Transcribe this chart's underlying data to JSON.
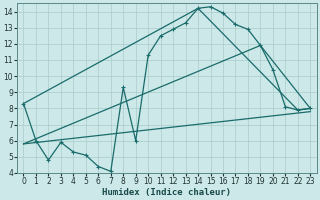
{
  "bg_color": "#cce8e8",
  "grid_color": "#aacccc",
  "line_color": "#1a6b6b",
  "xlabel": "Humidex (Indice chaleur)",
  "xlim": [
    -0.5,
    23.5
  ],
  "ylim": [
    4,
    14.5
  ],
  "xticks": [
    0,
    1,
    2,
    3,
    4,
    5,
    6,
    7,
    8,
    9,
    10,
    11,
    12,
    13,
    14,
    15,
    16,
    17,
    18,
    19,
    20,
    21,
    22,
    23
  ],
  "yticks": [
    4,
    5,
    6,
    7,
    8,
    9,
    10,
    11,
    12,
    13,
    14
  ],
  "line1_x": [
    0,
    1,
    2,
    3,
    4,
    5,
    6,
    7,
    8,
    9,
    10,
    11,
    12,
    13,
    14,
    15,
    16,
    17,
    18,
    19,
    20,
    21,
    22,
    23
  ],
  "line1_y": [
    8.3,
    6.0,
    4.8,
    5.9,
    5.3,
    5.1,
    4.4,
    4.1,
    9.3,
    6.0,
    11.3,
    12.5,
    12.9,
    13.3,
    14.2,
    14.3,
    13.9,
    13.2,
    12.9,
    11.9,
    10.4,
    8.1,
    7.9,
    8.0
  ],
  "line2_x": [
    0,
    14,
    22,
    23
  ],
  "line2_y": [
    8.3,
    14.2,
    7.9,
    8.0
  ],
  "line3_x": [
    0,
    19,
    23
  ],
  "line3_y": [
    5.8,
    11.9,
    8.0
  ],
  "line4_x": [
    0,
    23
  ],
  "line4_y": [
    5.8,
    7.8
  ]
}
